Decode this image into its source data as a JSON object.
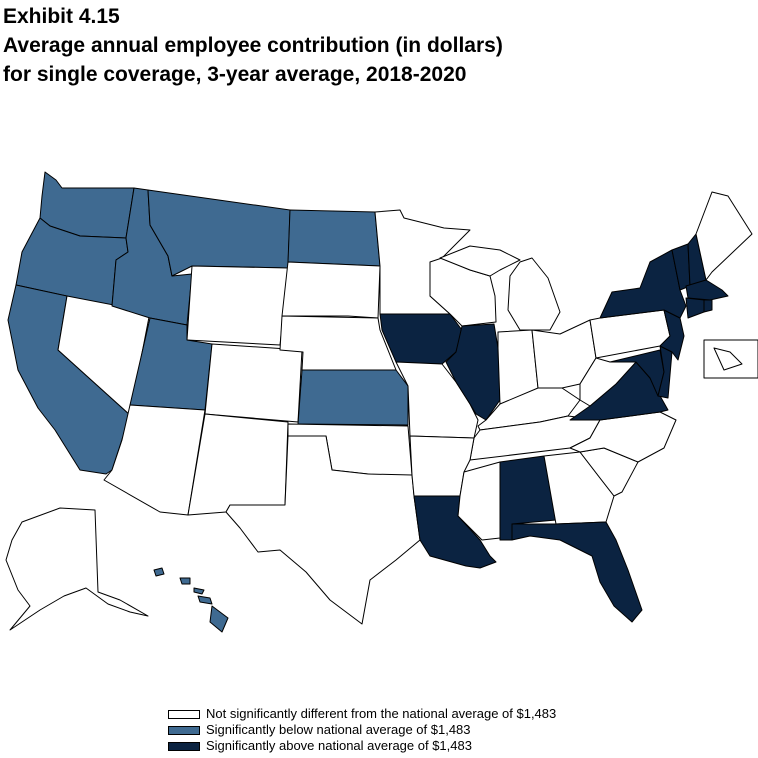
{
  "title": {
    "exhibit": "Exhibit 4.15",
    "line1": "Average annual employee contribution (in dollars)",
    "line2": "for single coverage, 3-year average, 2018-2020"
  },
  "colors": {
    "not_different": "#ffffff",
    "below": "#3f6a91",
    "above": "#0b2341",
    "border": "#000000"
  },
  "legend": [
    {
      "key": "not_different",
      "label": "Not significantly different from the national average of $1,483"
    },
    {
      "key": "below",
      "label": "Significantly below national average of $1,483"
    },
    {
      "key": "above",
      "label": "Significantly above national average of $1,483"
    }
  ],
  "national_average": 1483,
  "states": {
    "below": [
      "WA",
      "OR",
      "CA",
      "ID",
      "MT",
      "UT",
      "ND",
      "KS",
      "HI"
    ],
    "above": [
      "IA",
      "IL",
      "LA",
      "AL",
      "FL",
      "VA",
      "MD",
      "DE",
      "NJ",
      "NY",
      "VT",
      "NH",
      "MA",
      "CT",
      "RI"
    ],
    "not_different": [
      "NV",
      "AZ",
      "NM",
      "WY",
      "CO",
      "SD",
      "NE",
      "OK",
      "TX",
      "MN",
      "WI",
      "MO",
      "AR",
      "MS",
      "MI",
      "IN",
      "OH",
      "KY",
      "TN",
      "GA",
      "SC",
      "NC",
      "WV",
      "PA",
      "ME",
      "AK",
      "DC"
    ]
  }
}
